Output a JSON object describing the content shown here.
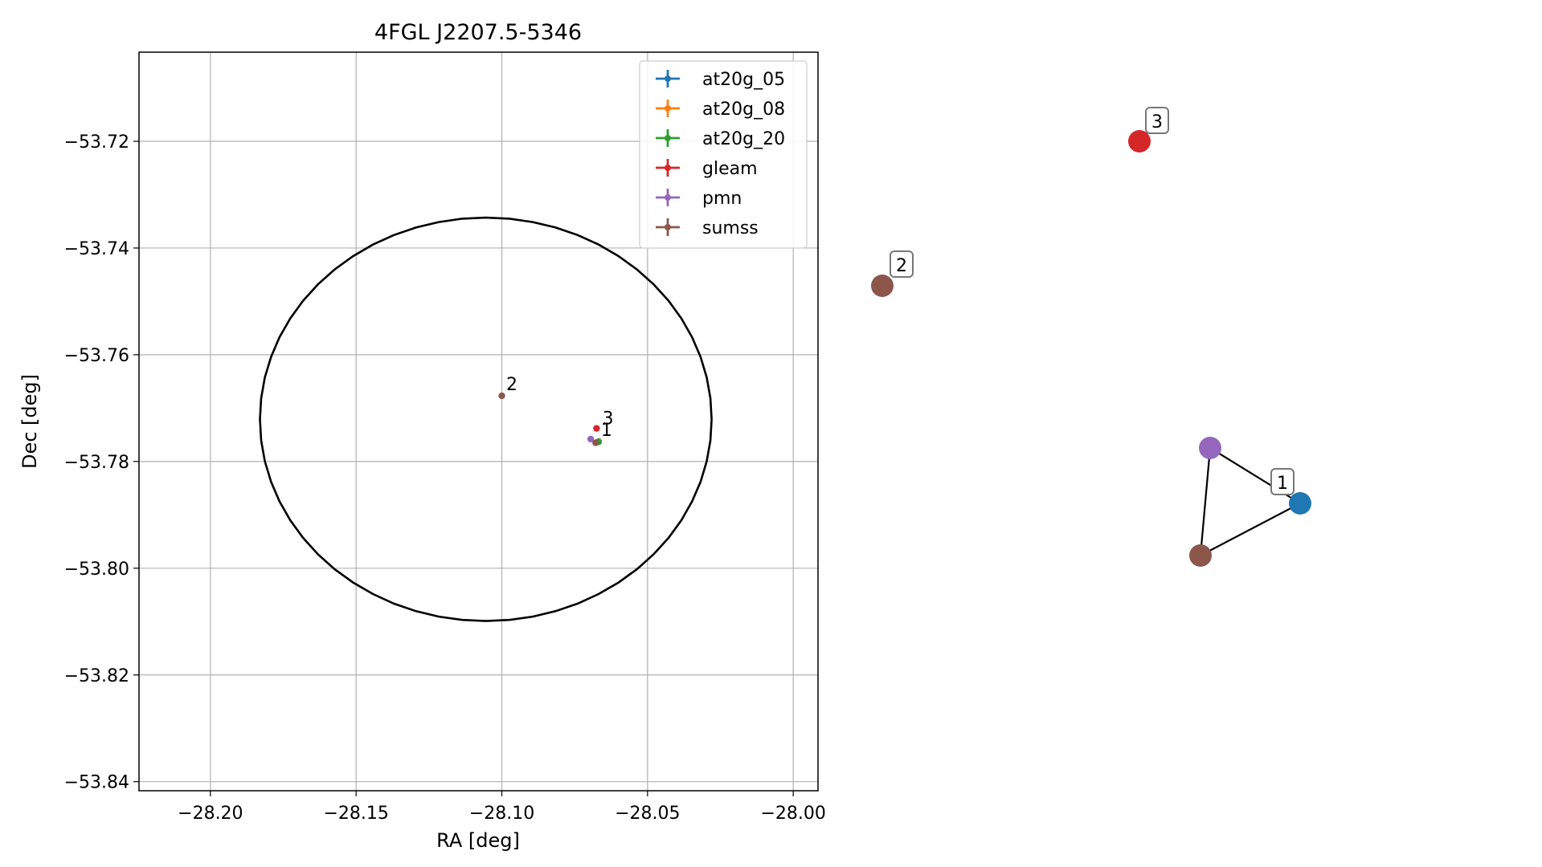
{
  "chart_data": [
    {
      "type": "scatter",
      "title": "4FGL J2207.5-5346",
      "xlabel": "RA [deg]",
      "ylabel": "Dec [deg]",
      "xlim": [
        -28.2245,
        -27.9915
      ],
      "ylim": [
        -53.8417,
        -53.7033
      ],
      "xticks": [
        -28.2,
        -28.15,
        -28.1,
        -28.05,
        -28.0
      ],
      "xtick_labels": [
        "−28.20",
        "−28.15",
        "−28.10",
        "−28.05",
        "−28.00"
      ],
      "yticks": [
        -53.72,
        -53.74,
        -53.76,
        -53.78,
        -53.8,
        -53.82,
        -53.84
      ],
      "ytick_labels": [
        "−53.72",
        "−53.74",
        "−53.76",
        "−53.78",
        "−53.80",
        "−53.82",
        "−53.84"
      ],
      "grid": true,
      "legend_position": "top-right",
      "series": [
        {
          "name": "at20g_05",
          "color": "#1f77b4",
          "x": [
            -28.0668
          ],
          "y": [
            -53.7763
          ]
        },
        {
          "name": "at20g_08",
          "color": "#ff7f0e",
          "x": [
            -28.0668
          ],
          "y": [
            -53.7763
          ]
        },
        {
          "name": "at20g_20",
          "color": "#2ca02c",
          "x": [
            -28.0668
          ],
          "y": [
            -53.7763
          ]
        },
        {
          "name": "gleam",
          "color": "#d62728",
          "x": [
            -28.0675
          ],
          "y": [
            -53.7738
          ]
        },
        {
          "name": "pmn",
          "color": "#9467bd",
          "x": [
            -28.0695
          ],
          "y": [
            -53.7758
          ]
        },
        {
          "name": "sumss",
          "color": "#8c564b",
          "x": [
            -28.1,
            -28.0678
          ],
          "y": [
            -53.7677,
            -53.7765
          ]
        }
      ],
      "ellipse": {
        "center_ra": -28.1055,
        "center_dec": -53.7721,
        "ra_radius": 0.0775,
        "dec_radius": 0.0378,
        "color": "#000000"
      },
      "annotations": [
        {
          "text": "1",
          "x": -28.066,
          "y": -53.7752
        },
        {
          "text": "2",
          "x": -28.0985,
          "y": -53.7666
        },
        {
          "text": "3",
          "x": -28.0655,
          "y": -53.773
        }
      ]
    },
    {
      "type": "network",
      "nodes": [
        {
          "id": "at20g_05",
          "color": "#1f77b4"
        },
        {
          "id": "pmn",
          "color": "#9467bd"
        },
        {
          "id": "sumss",
          "color": "#8c564b"
        },
        {
          "id": "sumss",
          "color": "#8c564b"
        },
        {
          "id": "gleam",
          "color": "#d62728"
        }
      ],
      "edges": [
        [
          0,
          1
        ],
        [
          1,
          2
        ],
        [
          2,
          0
        ]
      ],
      "labels": [
        "1",
        "2",
        "3"
      ]
    }
  ]
}
